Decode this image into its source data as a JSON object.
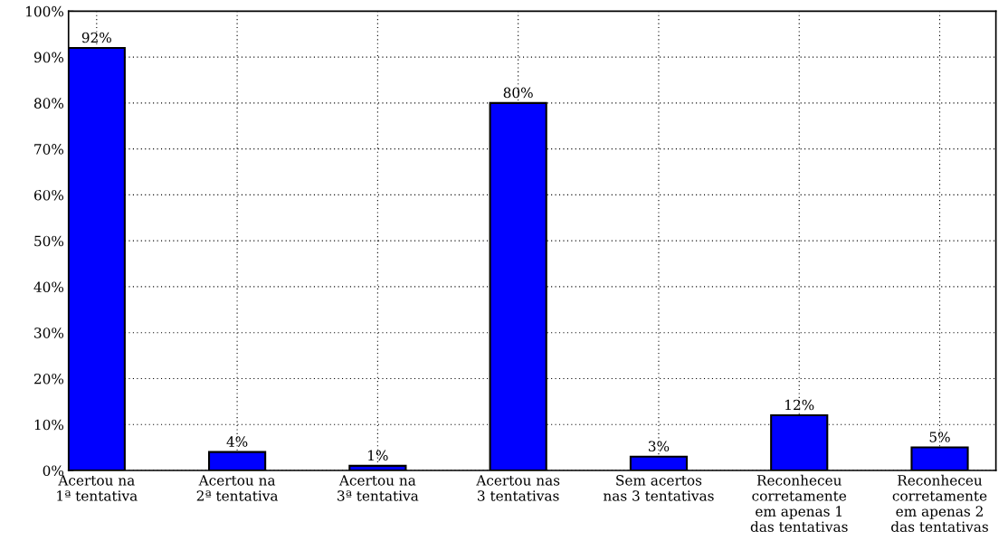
{
  "chart_data": {
    "type": "bar",
    "categories": [
      "Acertou na\n1ª tentativa",
      "Acertou na\n2ª tentativa",
      "Acertou na\n3ª tentativa",
      "Acertou nas\n3 tentativas",
      "Sem acertos\nnas 3 tentativas",
      "Reconheceu\ncorretamente\nem apenas 1\ndas tentativas",
      "Reconheceu\ncorretamente\nem apenas 2\ndas tentativas"
    ],
    "values": [
      92,
      4,
      1,
      80,
      3,
      12,
      5
    ],
    "value_labels": [
      "92%",
      "4%",
      "1%",
      "80%",
      "3%",
      "12%",
      "5%"
    ],
    "color": "#0000ff",
    "ylim": [
      0,
      100
    ],
    "yticks": [
      {
        "value": 0,
        "label": "0%"
      },
      {
        "value": 10,
        "label": "10%"
      },
      {
        "value": 20,
        "label": "20%"
      },
      {
        "value": 30,
        "label": "30%"
      },
      {
        "value": 40,
        "label": "40%"
      },
      {
        "value": 50,
        "label": "50%"
      },
      {
        "value": 60,
        "label": "60%"
      },
      {
        "value": 70,
        "label": "70%"
      },
      {
        "value": 80,
        "label": "80%"
      },
      {
        "value": 90,
        "label": "90%"
      },
      {
        "value": 100,
        "label": "100%"
      }
    ],
    "grid": true
  }
}
